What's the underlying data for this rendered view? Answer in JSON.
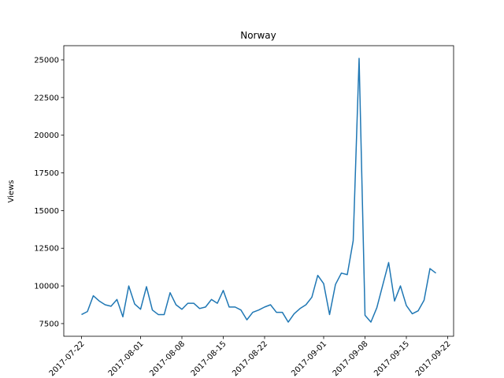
{
  "chart_data": {
    "type": "line",
    "title": "Norway",
    "ylabel": "Views",
    "color": "#1f77b4",
    "x": [
      "2017-07-22",
      "2017-07-23",
      "2017-07-24",
      "2017-07-25",
      "2017-07-26",
      "2017-07-27",
      "2017-07-28",
      "2017-07-29",
      "2017-07-30",
      "2017-07-31",
      "2017-08-01",
      "2017-08-02",
      "2017-08-03",
      "2017-08-04",
      "2017-08-05",
      "2017-08-06",
      "2017-08-07",
      "2017-08-08",
      "2017-08-09",
      "2017-08-10",
      "2017-08-11",
      "2017-08-12",
      "2017-08-13",
      "2017-08-14",
      "2017-08-15",
      "2017-08-16",
      "2017-08-17",
      "2017-08-18",
      "2017-08-19",
      "2017-08-20",
      "2017-08-21",
      "2017-08-22",
      "2017-08-23",
      "2017-08-24",
      "2017-08-25",
      "2017-08-26",
      "2017-08-27",
      "2017-08-28",
      "2017-08-29",
      "2017-08-30",
      "2017-08-31",
      "2017-09-01",
      "2017-09-02",
      "2017-09-03",
      "2017-09-04",
      "2017-09-05",
      "2017-09-06",
      "2017-09-07",
      "2017-09-08",
      "2017-09-09",
      "2017-09-10",
      "2017-09-11",
      "2017-09-12",
      "2017-09-13",
      "2017-09-14",
      "2017-09-15",
      "2017-09-16",
      "2017-09-17",
      "2017-09-18",
      "2017-09-19",
      "2017-09-20"
    ],
    "values": [
      8100,
      8300,
      9350,
      9000,
      8750,
      8650,
      9100,
      7950,
      10000,
      8800,
      8450,
      9950,
      8400,
      8100,
      8100,
      9550,
      8750,
      8450,
      8850,
      8850,
      8500,
      8600,
      9100,
      8850,
      9700,
      8600,
      8600,
      8400,
      7750,
      8250,
      8400,
      8600,
      8750,
      8250,
      8250,
      7600,
      8150,
      8500,
      8750,
      9250,
      10700,
      10150,
      8100,
      10100,
      10850,
      10750,
      13000,
      25100,
      8050,
      7600,
      8550,
      10050,
      11550,
      9000,
      10000,
      8700,
      8150,
      8350,
      9050,
      11150,
      10850
    ],
    "xlim": [
      "2017-07-19",
      "2017-09-23"
    ],
    "xticks": [
      "2017-07-22",
      "2017-08-01",
      "2017-08-08",
      "2017-08-15",
      "2017-08-22",
      "2017-09-01",
      "2017-09-08",
      "2017-09-15",
      "2017-09-22"
    ],
    "ylim": [
      6660,
      25940
    ],
    "yticks": [
      7500,
      10000,
      12500,
      15000,
      17500,
      20000,
      22500,
      25000
    ]
  }
}
